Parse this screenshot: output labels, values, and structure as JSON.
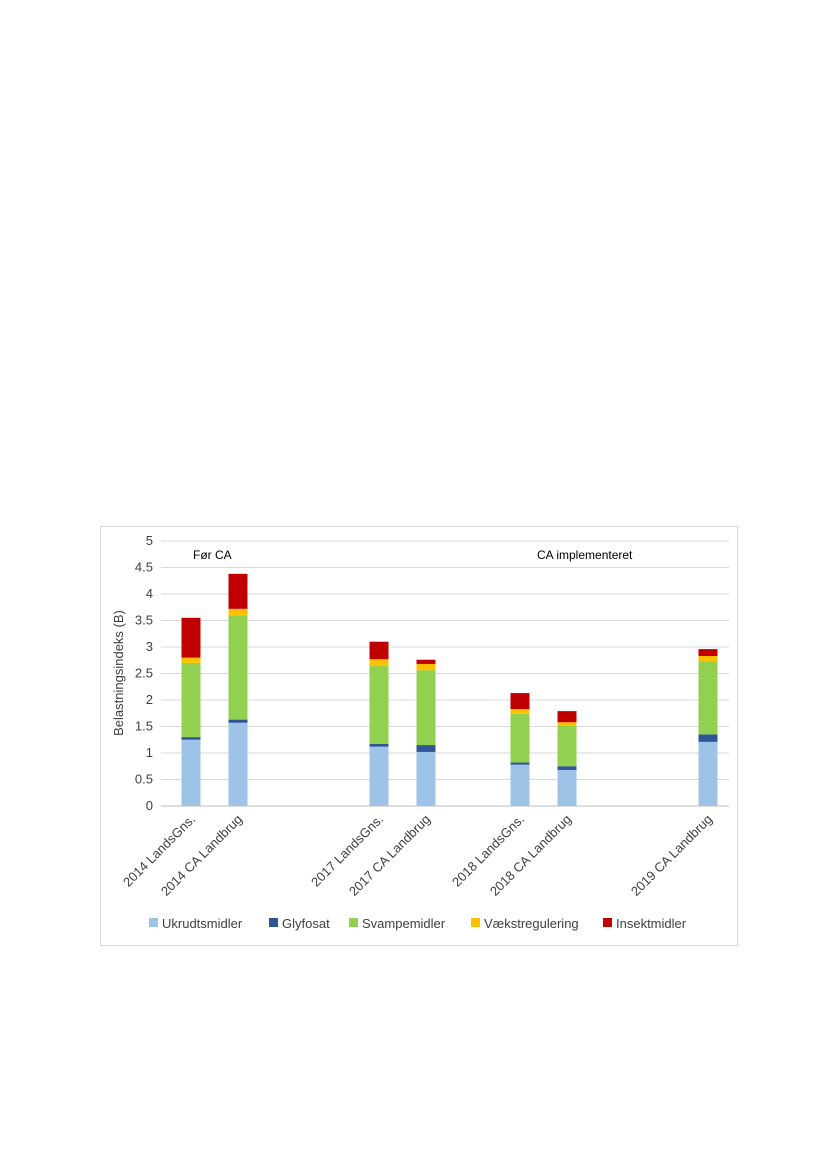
{
  "chart_data": {
    "type": "bar",
    "stacked": true,
    "title": "",
    "xlabel": "",
    "ylabel": "Belastningsindeks (B)",
    "ylim": [
      0,
      5
    ],
    "yticks": [
      "0",
      "0.5",
      "1",
      "1.5",
      "2",
      "2.5",
      "3",
      "3.5",
      "4",
      "4.5",
      "5"
    ],
    "grid": true,
    "legend": "bottom",
    "categories": [
      "2014 LandsGns.",
      "2014 CA Landbrug",
      "2017 LandsGns.",
      "2017 CA Landbrug",
      "2018 LandsGns.",
      "2018 CA Landbrug",
      "2019 CA Landbrug"
    ],
    "series": [
      {
        "name": "Ukrudtsmidler",
        "color": "#9dc3e6",
        "values": [
          1.25,
          1.57,
          1.12,
          1.02,
          0.78,
          0.68,
          1.21
        ]
      },
      {
        "name": "Glyfosat",
        "color": "#2f5597",
        "values": [
          0.05,
          0.06,
          0.05,
          0.13,
          0.04,
          0.07,
          0.14
        ]
      },
      {
        "name": "Svampemidler",
        "color": "#92d050",
        "values": [
          1.4,
          1.97,
          1.47,
          1.41,
          0.92,
          0.77,
          1.38
        ]
      },
      {
        "name": "Vækstregulering",
        "color": "#ffc000",
        "values": [
          0.1,
          0.12,
          0.13,
          0.12,
          0.09,
          0.06,
          0.1
        ]
      },
      {
        "name": "Insektmidler",
        "color": "#c00000",
        "values": [
          0.75,
          0.66,
          0.33,
          0.08,
          0.3,
          0.21,
          0.13
        ]
      }
    ],
    "annotations": [
      {
        "text": "Før CA",
        "position": "top-left"
      },
      {
        "text": "CA implementeret",
        "position": "top-right"
      }
    ]
  }
}
